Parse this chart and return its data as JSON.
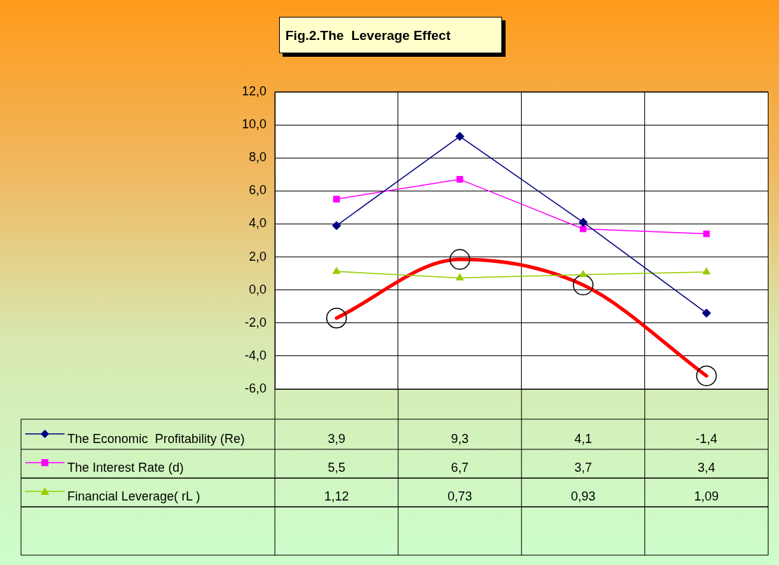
{
  "chart_data": {
    "type": "line",
    "title": "Fig.2.The  Leverage Effect",
    "categories": [
      null,
      null,
      null,
      null
    ],
    "series": [
      {
        "name": "The Economic  Profitability (Re)",
        "color": "#000080",
        "marker": "diamond",
        "values": [
          3.9,
          9.3,
          4.1,
          -1.4
        ],
        "value_labels": [
          "3,9",
          "9,3",
          "4,1",
          "-1,4"
        ]
      },
      {
        "name": "The Interest Rate (d)",
        "color": "#ff00ff",
        "marker": "square",
        "values": [
          5.5,
          6.7,
          3.7,
          3.4
        ],
        "value_labels": [
          "5,5",
          "6,7",
          "3,7",
          "3,4"
        ]
      },
      {
        "name": "Financial Leverage( rL )",
        "color": "#99cc00",
        "marker": "triangle",
        "values": [
          1.12,
          0.73,
          0.93,
          1.09
        ],
        "value_labels": [
          "1,12",
          "0,73",
          "0,93",
          "1,09"
        ]
      },
      {
        "color": "#ff0000",
        "marker": "circle",
        "values": [
          -1.7,
          1.85,
          0.3,
          -5.2
        ]
      }
    ],
    "ylim": [
      -6,
      12
    ],
    "yticks": [
      {
        "value": -6,
        "label": "-6,0"
      },
      {
        "value": -4,
        "label": "-4,0"
      },
      {
        "value": -2,
        "label": "-2,0"
      },
      {
        "value": 0,
        "label": "0,0"
      },
      {
        "value": 2,
        "label": "2,0"
      },
      {
        "value": 4,
        "label": "4,0"
      },
      {
        "value": 6,
        "label": "6,0"
      },
      {
        "value": 8,
        "label": "8,0"
      },
      {
        "value": 10,
        "label": "10,0"
      },
      {
        "value": 12,
        "label": "12,0"
      }
    ],
    "grid": true,
    "legend": "bottom",
    "tick_labels": "y"
  }
}
